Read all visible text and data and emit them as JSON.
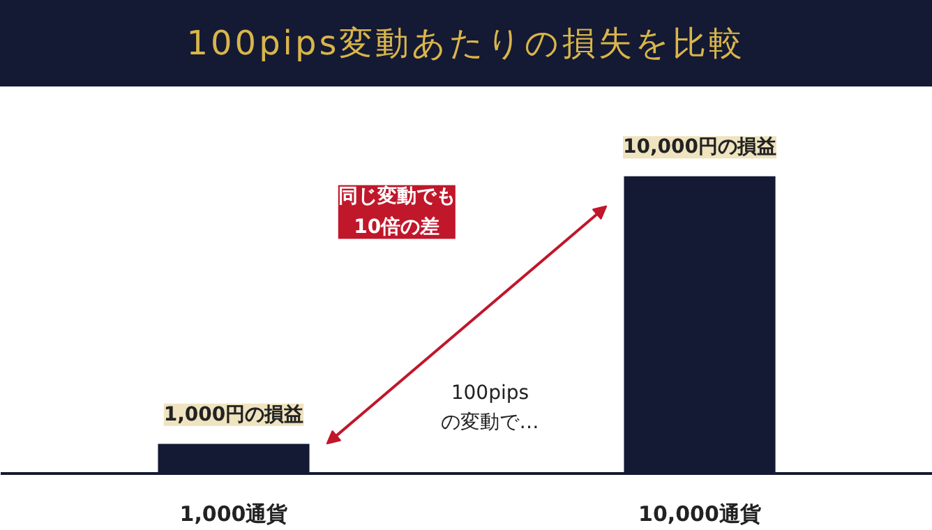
{
  "chart_data": {
    "type": "bar",
    "title": "100pips変動あたりの損失を比較",
    "categories": [
      "1,000通貨",
      "10,000通貨"
    ],
    "values": [
      1000,
      10000
    ],
    "value_labels": [
      "1,000円の損益",
      "10,000円の損益"
    ],
    "color": "#141a33",
    "annotations": [
      "同じ変動でも\n10倍の差",
      "100pips\nの変動で…"
    ]
  }
}
